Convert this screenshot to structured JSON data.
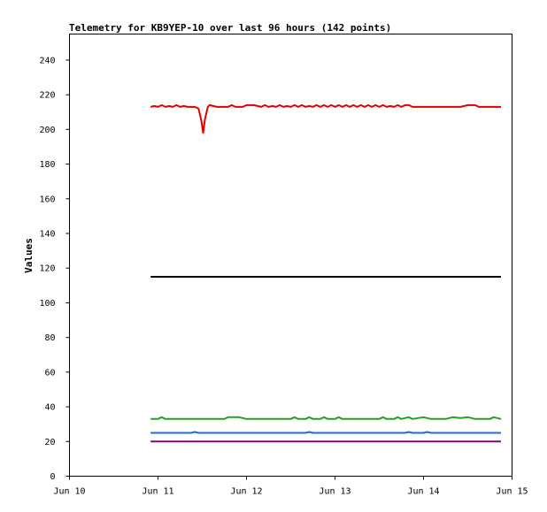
{
  "chart_data": {
    "type": "line",
    "title": "Telemetry for KB9YEP-10 over last 96 hours (142 points)",
    "xlabel": "",
    "ylabel": "Values",
    "x_ticks": [
      "Jun 10",
      "Jun 11",
      "Jun 12",
      "Jun 13",
      "Jun 14",
      "Jun 15"
    ],
    "y_ticks": [
      0,
      20,
      40,
      60,
      80,
      100,
      120,
      140,
      160,
      180,
      200,
      220,
      240
    ],
    "xlim": [
      "2024-06-10T00:00",
      "2024-06-15T00:00"
    ],
    "ylim": [
      0,
      255
    ],
    "grid": false,
    "series": [
      {
        "color": "#e00000",
        "points": [
          [
            "2024-06-10T22:00",
            213
          ],
          [
            "2024-06-10T23:00",
            213.5
          ],
          [
            "2024-06-11T00:00",
            213
          ],
          [
            "2024-06-11T01:00",
            214
          ],
          [
            "2024-06-11T02:00",
            213
          ],
          [
            "2024-06-11T03:00",
            213.5
          ],
          [
            "2024-06-11T04:00",
            213
          ],
          [
            "2024-06-11T05:00",
            214
          ],
          [
            "2024-06-11T06:00",
            213
          ],
          [
            "2024-06-11T07:00",
            213.5
          ],
          [
            "2024-06-11T08:00",
            213
          ],
          [
            "2024-06-11T09:00",
            213
          ],
          [
            "2024-06-11T10:00",
            213
          ],
          [
            "2024-06-11T11:00",
            212
          ],
          [
            "2024-06-11T11:45",
            205
          ],
          [
            "2024-06-11T12:15",
            198
          ],
          [
            "2024-06-11T12:45",
            206
          ],
          [
            "2024-06-11T13:30",
            213
          ],
          [
            "2024-06-11T14:00",
            214
          ],
          [
            "2024-06-11T15:00",
            213.5
          ],
          [
            "2024-06-11T16:00",
            213
          ],
          [
            "2024-06-11T17:00",
            213
          ],
          [
            "2024-06-11T18:00",
            213
          ],
          [
            "2024-06-11T19:00",
            213
          ],
          [
            "2024-06-11T20:00",
            214
          ],
          [
            "2024-06-11T21:00",
            213
          ],
          [
            "2024-06-11T22:00",
            213
          ],
          [
            "2024-06-11T23:00",
            213
          ],
          [
            "2024-06-12T00:00",
            214
          ],
          [
            "2024-06-12T02:00",
            214
          ],
          [
            "2024-06-12T04:00",
            213
          ],
          [
            "2024-06-12T05:00",
            214
          ],
          [
            "2024-06-12T06:00",
            213
          ],
          [
            "2024-06-12T07:00",
            213.5
          ],
          [
            "2024-06-12T08:00",
            213
          ],
          [
            "2024-06-12T09:00",
            214
          ],
          [
            "2024-06-12T10:00",
            213
          ],
          [
            "2024-06-12T11:00",
            213.5
          ],
          [
            "2024-06-12T12:00",
            213
          ],
          [
            "2024-06-12T13:00",
            214
          ],
          [
            "2024-06-12T14:00",
            213
          ],
          [
            "2024-06-12T15:00",
            214
          ],
          [
            "2024-06-12T16:00",
            213
          ],
          [
            "2024-06-12T17:00",
            213.5
          ],
          [
            "2024-06-12T18:00",
            213
          ],
          [
            "2024-06-12T19:00",
            214
          ],
          [
            "2024-06-12T20:00",
            213
          ],
          [
            "2024-06-12T21:00",
            214
          ],
          [
            "2024-06-12T22:00",
            213
          ],
          [
            "2024-06-12T23:00",
            214
          ],
          [
            "2024-06-13T00:00",
            213
          ],
          [
            "2024-06-13T01:00",
            214
          ],
          [
            "2024-06-13T02:00",
            213
          ],
          [
            "2024-06-13T03:00",
            214
          ],
          [
            "2024-06-13T04:00",
            213
          ],
          [
            "2024-06-13T05:00",
            214
          ],
          [
            "2024-06-13T06:00",
            213
          ],
          [
            "2024-06-13T07:00",
            214
          ],
          [
            "2024-06-13T08:00",
            213
          ],
          [
            "2024-06-13T09:00",
            214
          ],
          [
            "2024-06-13T10:00",
            213
          ],
          [
            "2024-06-13T11:00",
            214
          ],
          [
            "2024-06-13T12:00",
            213
          ],
          [
            "2024-06-13T13:00",
            214
          ],
          [
            "2024-06-13T14:00",
            213
          ],
          [
            "2024-06-13T15:00",
            213.5
          ],
          [
            "2024-06-13T16:00",
            213
          ],
          [
            "2024-06-13T17:00",
            214
          ],
          [
            "2024-06-13T18:00",
            213
          ],
          [
            "2024-06-13T19:00",
            214
          ],
          [
            "2024-06-13T20:00",
            214
          ],
          [
            "2024-06-13T21:00",
            213
          ],
          [
            "2024-06-13T22:00",
            213
          ],
          [
            "2024-06-14T00:00",
            213
          ],
          [
            "2024-06-14T02:00",
            213
          ],
          [
            "2024-06-14T04:00",
            213
          ],
          [
            "2024-06-14T06:00",
            213
          ],
          [
            "2024-06-14T08:00",
            213
          ],
          [
            "2024-06-14T10:00",
            213
          ],
          [
            "2024-06-14T12:00",
            214
          ],
          [
            "2024-06-14T14:00",
            214
          ],
          [
            "2024-06-14T15:00",
            213
          ],
          [
            "2024-06-14T16:00",
            213
          ],
          [
            "2024-06-14T18:00",
            213
          ],
          [
            "2024-06-14T21:00",
            213
          ]
        ]
      },
      {
        "color": "#000000",
        "points": [
          [
            "2024-06-10T22:00",
            115
          ],
          [
            "2024-06-14T21:00",
            115
          ]
        ]
      },
      {
        "color": "#22a022",
        "points": [
          [
            "2024-06-10T22:00",
            33
          ],
          [
            "2024-06-11T00:00",
            33
          ],
          [
            "2024-06-11T01:00",
            34
          ],
          [
            "2024-06-11T02:00",
            33
          ],
          [
            "2024-06-11T06:00",
            33
          ],
          [
            "2024-06-11T10:00",
            33
          ],
          [
            "2024-06-11T14:00",
            33
          ],
          [
            "2024-06-11T18:00",
            33
          ],
          [
            "2024-06-11T19:00",
            34
          ],
          [
            "2024-06-11T22:00",
            34
          ],
          [
            "2024-06-12T00:00",
            33
          ],
          [
            "2024-06-12T06:00",
            33
          ],
          [
            "2024-06-12T12:00",
            33
          ],
          [
            "2024-06-12T13:00",
            34
          ],
          [
            "2024-06-12T14:00",
            33
          ],
          [
            "2024-06-12T16:00",
            33
          ],
          [
            "2024-06-12T17:00",
            34
          ],
          [
            "2024-06-12T18:00",
            33
          ],
          [
            "2024-06-12T20:00",
            33
          ],
          [
            "2024-06-12T21:00",
            34
          ],
          [
            "2024-06-12T22:00",
            33
          ],
          [
            "2024-06-13T00:00",
            33
          ],
          [
            "2024-06-13T01:00",
            34
          ],
          [
            "2024-06-13T02:00",
            33
          ],
          [
            "2024-06-13T06:00",
            33
          ],
          [
            "2024-06-13T12:00",
            33
          ],
          [
            "2024-06-13T13:00",
            34
          ],
          [
            "2024-06-13T14:00",
            33
          ],
          [
            "2024-06-13T16:00",
            33
          ],
          [
            "2024-06-13T17:00",
            34
          ],
          [
            "2024-06-13T18:00",
            33
          ],
          [
            "2024-06-13T20:00",
            34
          ],
          [
            "2024-06-13T21:00",
            33
          ],
          [
            "2024-06-14T00:00",
            34
          ],
          [
            "2024-06-14T02:00",
            33
          ],
          [
            "2024-06-14T06:00",
            33
          ],
          [
            "2024-06-14T08:00",
            34
          ],
          [
            "2024-06-14T10:00",
            33.5
          ],
          [
            "2024-06-14T12:00",
            34
          ],
          [
            "2024-06-14T14:00",
            33
          ],
          [
            "2024-06-14T18:00",
            33
          ],
          [
            "2024-06-14T19:00",
            34
          ],
          [
            "2024-06-14T21:00",
            33
          ]
        ]
      },
      {
        "color": "#1a6fd0",
        "points": [
          [
            "2024-06-10T22:00",
            25
          ],
          [
            "2024-06-11T09:00",
            25
          ],
          [
            "2024-06-11T10:00",
            25.5
          ],
          [
            "2024-06-11T11:00",
            25
          ],
          [
            "2024-06-12T16:00",
            25
          ],
          [
            "2024-06-12T17:00",
            25.5
          ],
          [
            "2024-06-12T18:00",
            25
          ],
          [
            "2024-06-13T19:00",
            25
          ],
          [
            "2024-06-13T20:00",
            25.5
          ],
          [
            "2024-06-13T21:00",
            25
          ],
          [
            "2024-06-14T00:00",
            25
          ],
          [
            "2024-06-14T01:00",
            25.5
          ],
          [
            "2024-06-14T02:00",
            25
          ],
          [
            "2024-06-14T21:00",
            25
          ]
        ]
      },
      {
        "color": "#800080",
        "points": [
          [
            "2024-06-10T22:00",
            20
          ],
          [
            "2024-06-14T21:00",
            20
          ]
        ]
      }
    ]
  }
}
